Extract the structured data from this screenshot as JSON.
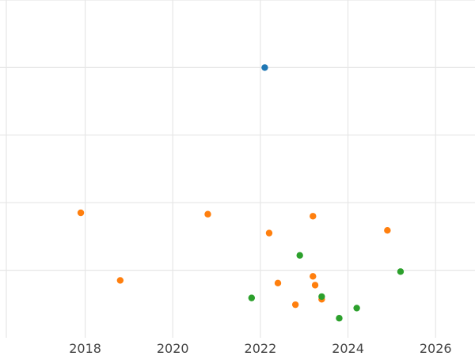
{
  "chart_data": {
    "type": "scatter",
    "title": "",
    "xlabel": "",
    "ylabel": "",
    "x_ticks": [
      "2018",
      "2020",
      "2022",
      "2024",
      "2026"
    ],
    "x_tick_values": [
      2018,
      2020,
      2022,
      2024,
      2026
    ],
    "y_tick_values": [
      1,
      2,
      3,
      4,
      5
    ],
    "xlim": [
      2016.2,
      2026.9
    ],
    "ylim": [
      0,
      5
    ],
    "grid": true,
    "legend": "none",
    "series": [
      {
        "color": "#1f77b4",
        "points": [
          {
            "x": 2022.1,
            "y": 4.0
          }
        ]
      },
      {
        "color": "#ff7f0e",
        "points": [
          {
            "x": 2017.9,
            "y": 1.85
          },
          {
            "x": 2018.8,
            "y": 0.85
          },
          {
            "x": 2020.8,
            "y": 1.83
          },
          {
            "x": 2022.2,
            "y": 1.55
          },
          {
            "x": 2022.4,
            "y": 0.81
          },
          {
            "x": 2022.8,
            "y": 0.49
          },
          {
            "x": 2023.2,
            "y": 1.8
          },
          {
            "x": 2023.2,
            "y": 0.91
          },
          {
            "x": 2023.25,
            "y": 0.78
          },
          {
            "x": 2023.4,
            "y": 0.57
          },
          {
            "x": 2024.9,
            "y": 1.59
          }
        ]
      },
      {
        "color": "#2ca02c",
        "points": [
          {
            "x": 2021.8,
            "y": 0.59
          },
          {
            "x": 2022.9,
            "y": 1.22
          },
          {
            "x": 2023.4,
            "y": 0.61
          },
          {
            "x": 2023.8,
            "y": 0.29
          },
          {
            "x": 2024.2,
            "y": 0.44
          },
          {
            "x": 2025.2,
            "y": 0.98
          }
        ]
      }
    ]
  }
}
